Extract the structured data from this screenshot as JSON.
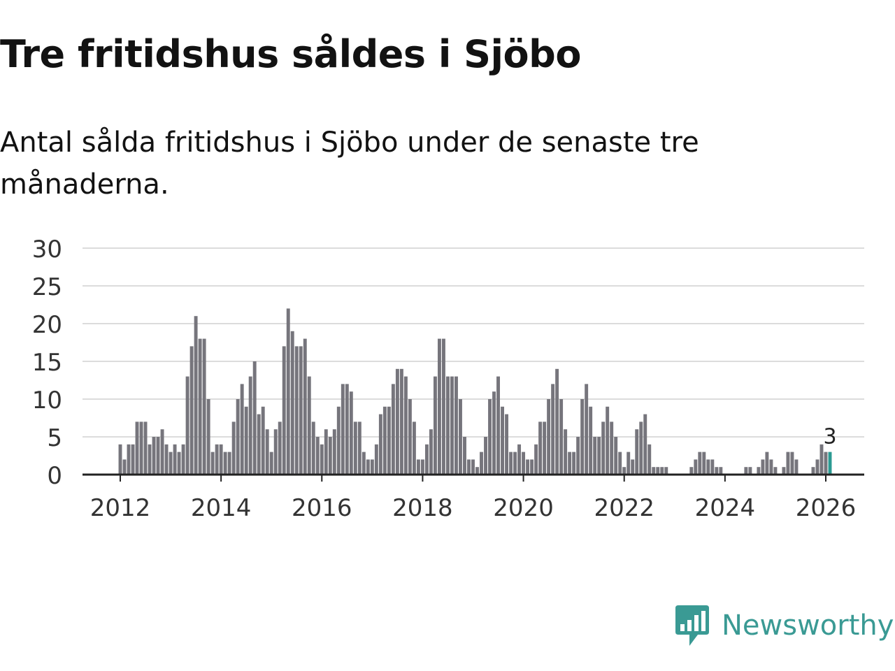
{
  "title": "Tre fritidshus såldes i Sjöbo",
  "subtitle": "Antal sålda fritidshus i Sjöbo under de senaste tre månaderna.",
  "brand": {
    "name": "Newsworthy",
    "color": "#3a9a94"
  },
  "chart_data": {
    "type": "bar",
    "title": "Tre fritidshus såldes i Sjöbo",
    "xlabel": "",
    "ylabel": "",
    "ylim": [
      0,
      30
    ],
    "yticks": [
      0,
      5,
      10,
      15,
      20,
      25,
      30
    ],
    "xticks": [
      "2012",
      "2014",
      "2016",
      "2018",
      "2020",
      "2022",
      "2024",
      "2026"
    ],
    "start": "2012-01",
    "end": "2026-01",
    "bar_color": "#76757c",
    "highlight_color": "#2b9a92",
    "highlight_label": "3",
    "grid": true,
    "values": [
      4,
      2,
      4,
      4,
      7,
      7,
      7,
      4,
      5,
      5,
      6,
      4,
      3,
      4,
      3,
      4,
      13,
      17,
      21,
      18,
      18,
      10,
      3,
      4,
      4,
      3,
      3,
      7,
      10,
      12,
      9,
      13,
      15,
      8,
      9,
      6,
      3,
      6,
      7,
      17,
      22,
      19,
      17,
      17,
      18,
      13,
      7,
      5,
      4,
      6,
      5,
      6,
      9,
      12,
      12,
      11,
      7,
      7,
      3,
      2,
      2,
      4,
      8,
      9,
      9,
      12,
      14,
      14,
      13,
      10,
      7,
      2,
      2,
      4,
      6,
      13,
      18,
      18,
      13,
      13,
      13,
      10,
      5,
      2,
      2,
      1,
      3,
      5,
      10,
      11,
      13,
      9,
      8,
      3,
      3,
      4,
      3,
      2,
      2,
      4,
      7,
      7,
      10,
      12,
      14,
      10,
      6,
      3,
      3,
      5,
      10,
      12,
      9,
      5,
      5,
      7,
      9,
      7,
      5,
      3,
      1,
      3,
      2,
      6,
      7,
      8,
      4,
      1,
      1,
      1,
      1,
      0,
      0,
      0,
      0,
      0,
      1,
      2,
      3,
      3,
      2,
      2,
      1,
      1,
      0,
      0,
      0,
      0,
      0,
      1,
      1,
      0,
      1,
      2,
      3,
      2,
      1,
      0,
      1,
      3,
      3,
      2,
      0,
      0,
      0,
      1,
      2,
      4,
      3,
      3
    ]
  }
}
